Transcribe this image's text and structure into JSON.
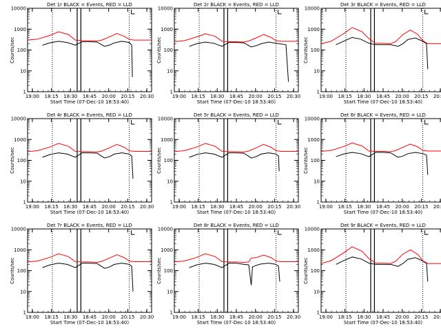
{
  "colors": {
    "events": "#000000",
    "lld": "#ff0000",
    "axis": "#000000",
    "background": "#ffffff"
  },
  "chart_data": [
    {
      "type": "line",
      "title": "Det 1r BLACK = Events, RED = LLD",
      "ylabel": "Counts/sec",
      "xlabel": "Start Time (07-Dec-10 18:53:40)",
      "x_tick_labels": [
        "19:00",
        "18:15",
        "18:30",
        "18:45",
        "20:00",
        "20:15",
        "20:30"
      ],
      "y_tick_labels": [
        "1",
        "10",
        "100",
        "1000",
        "10000"
      ],
      "ylim": [
        1,
        10000
      ],
      "yscale": "log",
      "xlim": [
        0,
        1
      ],
      "vlines_dotted": [
        0.2,
        0.82
      ],
      "vlines_solid": [
        0.4,
        0.43
      ],
      "series": [
        {
          "name": "Events",
          "color": "#000000",
          "x": [
            0.12,
            0.18,
            0.25,
            0.32,
            0.385,
            0.44,
            0.5,
            0.56,
            0.62,
            0.66,
            0.7,
            0.76,
            0.82,
            0.84,
            0.845,
            0.86,
            0.9
          ],
          "y": [
            170,
            220,
            260,
            230,
            170,
            250,
            250,
            240,
            150,
            170,
            220,
            260,
            230,
            170,
            5,
            null,
            null
          ]
        },
        {
          "name": "LLD",
          "color": "#ff0000",
          "x": [
            0,
            0.08,
            0.18,
            0.25,
            0.33,
            0.385,
            0.44,
            0.5,
            0.56,
            0.6,
            0.66,
            0.72,
            0.78,
            0.82,
            0.86,
            0.93,
            1.0
          ],
          "y": [
            300,
            330,
            500,
            750,
            550,
            300,
            280,
            280,
            270,
            300,
            420,
            620,
            450,
            320,
            300,
            300,
            300
          ]
        }
      ]
    },
    {
      "type": "line",
      "title": "Det 2r BLACK = Events, RED = LLD",
      "ylabel": "Counts/sec",
      "xlabel": "Start Time (07-Dec-10 18:53:40)",
      "x_tick_labels": [
        "19:00",
        "18:15",
        "18:30",
        "18:45",
        "20:00",
        "20:15",
        "20:30"
      ],
      "y_tick_labels": [
        "1",
        "10",
        "100",
        "1000",
        "10000"
      ],
      "ylim": [
        1,
        10000
      ],
      "yscale": "log",
      "xlim": [
        0,
        1
      ],
      "vlines_dotted": [
        0.2,
        0.82
      ],
      "vlines_solid": [
        0.4,
        0.43
      ],
      "series": [
        {
          "name": "Events",
          "color": "#000000",
          "x": [
            0.12,
            0.18,
            0.25,
            0.32,
            0.385,
            0.44,
            0.5,
            0.56,
            0.62,
            0.66,
            0.7,
            0.76,
            0.82,
            0.9,
            0.92,
            0.93
          ],
          "y": [
            150,
            200,
            240,
            210,
            150,
            230,
            230,
            220,
            140,
            160,
            200,
            240,
            210,
            180,
            3,
            null
          ]
        },
        {
          "name": "LLD",
          "color": "#ff0000",
          "x": [
            0,
            0.08,
            0.18,
            0.25,
            0.33,
            0.385,
            0.44,
            0.5,
            0.56,
            0.6,
            0.66,
            0.72,
            0.78,
            0.82,
            0.86,
            0.93,
            1.0
          ],
          "y": [
            250,
            280,
            420,
            600,
            450,
            260,
            250,
            250,
            240,
            270,
            380,
            550,
            400,
            280,
            260,
            260,
            260
          ]
        }
      ]
    },
    {
      "type": "line",
      "title": "Det 3r BLACK = Events, RED = LLD",
      "ylabel": "Counts/sec",
      "xlabel": "Start Time (07-Dec-10 18:53:40)",
      "x_tick_labels": [
        "19:00",
        "18:15",
        "18:30",
        "18:45",
        "20:00",
        "20:15",
        "20:30"
      ],
      "y_tick_labels": [
        "1",
        "10",
        "100",
        "1000",
        "10000"
      ],
      "ylim": [
        1,
        10000
      ],
      "yscale": "log",
      "xlim": [
        0,
        1
      ],
      "vlines_dotted": [
        0.2,
        0.82
      ],
      "vlines_solid": [
        0.4,
        0.43
      ],
      "series": [
        {
          "name": "Events",
          "color": "#000000",
          "x": [
            0.12,
            0.18,
            0.25,
            0.32,
            0.385,
            0.44,
            0.5,
            0.56,
            0.62,
            0.66,
            0.7,
            0.76,
            0.82,
            0.85,
            0.86,
            0.87
          ],
          "y": [
            180,
            260,
            400,
            330,
            210,
            180,
            180,
            180,
            150,
            200,
            320,
            380,
            260,
            200,
            12,
            null
          ]
        },
        {
          "name": "LLD",
          "color": "#ff0000",
          "x": [
            0,
            0.08,
            0.18,
            0.25,
            0.33,
            0.385,
            0.44,
            0.5,
            0.56,
            0.6,
            0.66,
            0.72,
            0.78,
            0.82,
            0.86,
            0.93,
            1.0
          ],
          "y": [
            200,
            260,
            600,
            1200,
            750,
            350,
            210,
            210,
            200,
            250,
            550,
            900,
            550,
            280,
            200,
            200,
            200
          ]
        }
      ]
    },
    {
      "type": "line",
      "title": "Det 4r BLACK = Events, RED = LLD",
      "ylabel": "Counts/sec",
      "xlabel": "Start Time (07-Dec-10 18:53:40)",
      "x_tick_labels": [
        "19:00",
        "18:15",
        "18:30",
        "18:45",
        "20:00",
        "20:15",
        "20:30"
      ],
      "y_tick_labels": [
        "1",
        "10",
        "100",
        "1000",
        "10000"
      ],
      "ylim": [
        1,
        10000
      ],
      "yscale": "log",
      "xlim": [
        0,
        1
      ],
      "vlines_dotted": [
        0.2,
        0.82
      ],
      "vlines_solid": [
        0.4,
        0.43
      ],
      "series": [
        {
          "name": "Events",
          "color": "#000000",
          "x": [
            0.12,
            0.18,
            0.25,
            0.32,
            0.385,
            0.44,
            0.5,
            0.56,
            0.62,
            0.66,
            0.7,
            0.76,
            0.82,
            0.84,
            0.85,
            0.86
          ],
          "y": [
            140,
            190,
            230,
            200,
            140,
            230,
            230,
            220,
            130,
            150,
            200,
            230,
            200,
            160,
            13,
            null
          ]
        },
        {
          "name": "LLD",
          "color": "#ff0000",
          "x": [
            0,
            0.08,
            0.18,
            0.25,
            0.33,
            0.385,
            0.44,
            0.5,
            0.56,
            0.6,
            0.66,
            0.72,
            0.78,
            0.82,
            0.86,
            0.93,
            1.0
          ],
          "y": [
            260,
            290,
            430,
            650,
            470,
            270,
            260,
            260,
            250,
            280,
            400,
            580,
            420,
            290,
            270,
            270,
            270
          ]
        }
      ]
    },
    {
      "type": "line",
      "title": "Det 5r BLACK = Events, RED = LLD",
      "ylabel": "Counts/sec",
      "xlabel": "Start Time (07-Dec-10 18:53:40)",
      "x_tick_labels": [
        "19:00",
        "18:15",
        "18:30",
        "18:45",
        "20:00",
        "20:15",
        "20:30"
      ],
      "y_tick_labels": [
        "1",
        "10",
        "100",
        "1000",
        "10000"
      ],
      "ylim": [
        1,
        10000
      ],
      "yscale": "log",
      "xlim": [
        0,
        1
      ],
      "vlines_dotted": [
        0.2,
        0.82
      ],
      "vlines_solid": [
        0.4,
        0.43
      ],
      "series": [
        {
          "name": "Events",
          "color": "#000000",
          "x": [
            0.12,
            0.18,
            0.25,
            0.32,
            0.385,
            0.44,
            0.5,
            0.56,
            0.62,
            0.66,
            0.7,
            0.76,
            0.82,
            0.84,
            0.845,
            0.85
          ],
          "y": [
            140,
            190,
            230,
            200,
            140,
            230,
            230,
            220,
            130,
            150,
            200,
            230,
            200,
            160,
            30,
            null
          ]
        },
        {
          "name": "LLD",
          "color": "#ff0000",
          "x": [
            0,
            0.08,
            0.18,
            0.25,
            0.33,
            0.385,
            0.44,
            0.5,
            0.56,
            0.6,
            0.66,
            0.72,
            0.78,
            0.82,
            0.86,
            0.93,
            1.0
          ],
          "y": [
            260,
            290,
            430,
            650,
            470,
            270,
            260,
            260,
            250,
            280,
            400,
            580,
            420,
            290,
            270,
            270,
            270
          ]
        }
      ]
    },
    {
      "type": "line",
      "title": "Det 6r BLACK = Events, RED = LLD",
      "ylabel": "Counts/sec",
      "xlabel": "Start Time (07-Dec-10 18:53:40)",
      "x_tick_labels": [
        "19:00",
        "18:15",
        "18:30",
        "18:45",
        "20:00",
        "20:15",
        "20:30"
      ],
      "y_tick_labels": [
        "1",
        "10",
        "100",
        "1000",
        "10000"
      ],
      "ylim": [
        1,
        10000
      ],
      "yscale": "log",
      "xlim": [
        0,
        1
      ],
      "vlines_dotted": [
        0.2,
        0.82
      ],
      "vlines_solid": [
        0.4,
        0.43
      ],
      "series": [
        {
          "name": "Events",
          "color": "#000000",
          "x": [
            0.12,
            0.18,
            0.25,
            0.32,
            0.385,
            0.44,
            0.5,
            0.56,
            0.62,
            0.66,
            0.7,
            0.76,
            0.82,
            0.85,
            0.86,
            0.87
          ],
          "y": [
            150,
            200,
            240,
            210,
            150,
            240,
            240,
            230,
            140,
            160,
            210,
            240,
            210,
            180,
            20,
            null
          ]
        },
        {
          "name": "LLD",
          "color": "#ff0000",
          "x": [
            0,
            0.08,
            0.18,
            0.25,
            0.33,
            0.385,
            0.44,
            0.5,
            0.56,
            0.6,
            0.66,
            0.72,
            0.78,
            0.82,
            0.86,
            0.93,
            1.0
          ],
          "y": [
            270,
            300,
            450,
            680,
            490,
            280,
            270,
            270,
            260,
            290,
            420,
            600,
            440,
            300,
            280,
            280,
            280
          ]
        }
      ]
    },
    {
      "type": "line",
      "title": "Det 7r BLACK = Events, RED = LLD",
      "ylabel": "Counts/sec",
      "xlabel": "Start Time (07-Dec-10 18:53:40)",
      "x_tick_labels": [
        "19:00",
        "18:15",
        "18:30",
        "18:45",
        "20:00",
        "20:15",
        "20:30"
      ],
      "y_tick_labels": [
        "1",
        "10",
        "100",
        "1000",
        "10000"
      ],
      "ylim": [
        1,
        10000
      ],
      "yscale": "log",
      "xlim": [
        0,
        1
      ],
      "vlines_dotted": [
        0.2,
        0.82
      ],
      "vlines_solid": [
        0.4,
        0.43
      ],
      "series": [
        {
          "name": "Events",
          "color": "#000000",
          "x": [
            0.12,
            0.18,
            0.25,
            0.32,
            0.385,
            0.44,
            0.5,
            0.56,
            0.62,
            0.66,
            0.7,
            0.76,
            0.82,
            0.84,
            0.85,
            0.86
          ],
          "y": [
            140,
            190,
            230,
            200,
            140,
            230,
            230,
            220,
            130,
            150,
            200,
            230,
            200,
            160,
            10,
            null
          ]
        },
        {
          "name": "LLD",
          "color": "#ff0000",
          "x": [
            0,
            0.08,
            0.18,
            0.25,
            0.33,
            0.385,
            0.44,
            0.5,
            0.56,
            0.6,
            0.66,
            0.72,
            0.78,
            0.82,
            0.86,
            0.93,
            1.0
          ],
          "y": [
            260,
            290,
            430,
            650,
            470,
            270,
            260,
            260,
            250,
            280,
            400,
            580,
            420,
            290,
            270,
            270,
            270
          ]
        }
      ]
    },
    {
      "type": "line",
      "title": "Det 8r BLACK = Events, RED = LLD",
      "ylabel": "Counts/sec",
      "xlabel": "Start Time (07-Dec-10 18:53:40)",
      "x_tick_labels": [
        "19:00",
        "18:15",
        "18:30",
        "18:45",
        "20:00",
        "20:15",
        "20:30"
      ],
      "y_tick_labels": [
        "1",
        "10",
        "100",
        "1000",
        "10000"
      ],
      "ylim": [
        1,
        10000
      ],
      "yscale": "log",
      "xlim": [
        0,
        1
      ],
      "vlines_dotted": [
        0.2,
        0.82
      ],
      "vlines_solid": [
        0.4,
        0.43
      ],
      "series": [
        {
          "name": "Events",
          "color": "#000000",
          "x": [
            0.12,
            0.18,
            0.25,
            0.32,
            0.385,
            0.44,
            0.5,
            0.56,
            0.6,
            0.62,
            0.63,
            0.66,
            0.7,
            0.76,
            0.82,
            0.84,
            0.85,
            0.86
          ],
          "y": [
            140,
            190,
            230,
            200,
            140,
            230,
            230,
            200,
            190,
            20,
            150,
            180,
            210,
            230,
            200,
            160,
            30,
            null
          ]
        },
        {
          "name": "LLD",
          "color": "#ff0000",
          "x": [
            0,
            0.08,
            0.18,
            0.25,
            0.33,
            0.385,
            0.44,
            0.5,
            0.56,
            0.6,
            0.62,
            0.66,
            0.72,
            0.78,
            0.82,
            0.86,
            0.93,
            1.0
          ],
          "y": [
            260,
            290,
            430,
            650,
            470,
            270,
            260,
            260,
            250,
            260,
            400,
            420,
            560,
            420,
            290,
            270,
            270,
            270
          ]
        }
      ]
    },
    {
      "type": "line",
      "title": "Det 9r BLACK = Events, RED = LLD",
      "ylabel": "Counts/sec",
      "xlabel": "Start Time (07-Dec-10 18:53:40)",
      "x_tick_labels": [
        "19:00",
        "18:15",
        "18:30",
        "18:45",
        "20:00",
        "20:15",
        "20:30"
      ],
      "y_tick_labels": [
        "1",
        "10",
        "100",
        "1000",
        "10000"
      ],
      "ylim": [
        1,
        10000
      ],
      "yscale": "log",
      "xlim": [
        0,
        1
      ],
      "vlines_dotted": [
        0.2,
        0.82
      ],
      "vlines_solid": [
        0.4,
        0.43
      ],
      "series": [
        {
          "name": "Events",
          "color": "#000000",
          "x": [
            0.12,
            0.18,
            0.25,
            0.32,
            0.385,
            0.44,
            0.5,
            0.56,
            0.62,
            0.66,
            0.7,
            0.76,
            0.82,
            0.85,
            0.86,
            0.87
          ],
          "y": [
            200,
            300,
            450,
            370,
            230,
            200,
            200,
            200,
            160,
            220,
            350,
            420,
            290,
            220,
            30,
            null
          ]
        },
        {
          "name": "LLD",
          "color": "#ff0000",
          "x": [
            0,
            0.08,
            0.18,
            0.25,
            0.33,
            0.385,
            0.44,
            0.5,
            0.56,
            0.6,
            0.66,
            0.72,
            0.78,
            0.82,
            0.86,
            0.93,
            1.0
          ],
          "y": [
            220,
            300,
            700,
            1400,
            850,
            380,
            230,
            230,
            220,
            280,
            620,
            1000,
            600,
            300,
            220,
            220,
            220
          ]
        }
      ]
    }
  ]
}
